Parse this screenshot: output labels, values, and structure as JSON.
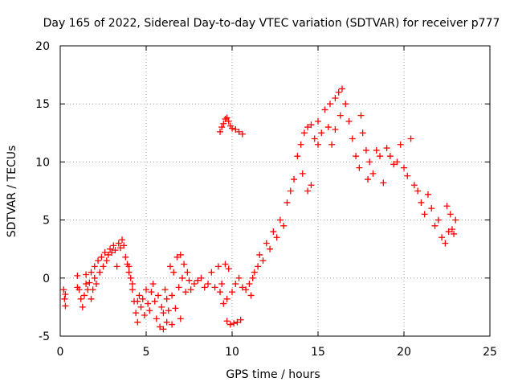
{
  "chart_data": {
    "type": "scatter",
    "title": "Day 165 of 2022, Sidereal Day-to-day VTEC variation (SDTVAR) for receiver p777",
    "xlabel": "GPS time / hours",
    "ylabel": "SDTVAR / TECUs",
    "xlim": [
      0,
      25
    ],
    "ylim": [
      -5,
      20
    ],
    "xticks": [
      "0",
      "5",
      "10",
      "15",
      "20",
      "25"
    ],
    "yticks": [
      "-5",
      "0",
      "5",
      "10",
      "15",
      "20"
    ],
    "grid": true,
    "marker": "plus",
    "series": [
      {
        "name": "SDTVAR",
        "color": "#ff0000",
        "points": [
          [
            0.2,
            -1.0
          ],
          [
            0.25,
            -1.8
          ],
          [
            0.3,
            -2.4
          ],
          [
            0.3,
            -1.4
          ],
          [
            1.0,
            -0.8
          ],
          [
            1.0,
            0.2
          ],
          [
            1.1,
            -1.0
          ],
          [
            1.2,
            -1.8
          ],
          [
            1.3,
            -2.5
          ],
          [
            1.4,
            -1.5
          ],
          [
            1.5,
            -0.5
          ],
          [
            1.5,
            0.3
          ],
          [
            1.6,
            -1.0
          ],
          [
            1.7,
            -0.4
          ],
          [
            1.8,
            -1.8
          ],
          [
            1.8,
            0.5
          ],
          [
            1.9,
            -1.0
          ],
          [
            2.0,
            0.0
          ],
          [
            2.0,
            1.0
          ],
          [
            2.1,
            -0.5
          ],
          [
            2.2,
            1.5
          ],
          [
            2.3,
            0.5
          ],
          [
            2.4,
            1.8
          ],
          [
            2.5,
            1.0
          ],
          [
            2.6,
            2.2
          ],
          [
            2.7,
            1.5
          ],
          [
            2.8,
            2.0
          ],
          [
            2.9,
            2.5
          ],
          [
            3.0,
            2.2
          ],
          [
            3.1,
            2.8
          ],
          [
            3.2,
            2.4
          ],
          [
            3.3,
            1.0
          ],
          [
            3.4,
            3.0
          ],
          [
            3.5,
            2.6
          ],
          [
            3.6,
            3.3
          ],
          [
            3.7,
            2.8
          ],
          [
            3.8,
            1.8
          ],
          [
            3.9,
            1.2
          ],
          [
            4.0,
            0.5
          ],
          [
            4.0,
            1.0
          ],
          [
            4.1,
            0.0
          ],
          [
            4.2,
            -1.0
          ],
          [
            4.2,
            -0.5
          ],
          [
            4.3,
            -2.0
          ],
          [
            4.4,
            -3.0
          ],
          [
            4.5,
            -3.8
          ],
          [
            4.5,
            -2.0
          ],
          [
            4.6,
            -1.5
          ],
          [
            4.7,
            -2.5
          ],
          [
            4.8,
            -1.8
          ],
          [
            4.9,
            -3.2
          ],
          [
            5.0,
            -1.0
          ],
          [
            5.1,
            -2.2
          ],
          [
            5.2,
            -2.8
          ],
          [
            5.3,
            -1.2
          ],
          [
            5.4,
            -0.5
          ],
          [
            5.5,
            -2.0
          ],
          [
            5.6,
            -3.5
          ],
          [
            5.7,
            -1.5
          ],
          [
            5.8,
            -4.2
          ],
          [
            5.9,
            -2.5
          ],
          [
            6.0,
            -4.4
          ],
          [
            6.0,
            -3.0
          ],
          [
            6.1,
            -1.0
          ],
          [
            6.2,
            -3.8
          ],
          [
            6.2,
            -1.8
          ],
          [
            6.3,
            -2.8
          ],
          [
            6.4,
            1.0
          ],
          [
            6.5,
            -1.5
          ],
          [
            6.5,
            -4.0
          ],
          [
            6.6,
            0.5
          ],
          [
            6.7,
            -2.6
          ],
          [
            6.8,
            1.8
          ],
          [
            6.9,
            -0.8
          ],
          [
            7.0,
            2.0
          ],
          [
            7.0,
            -3.5
          ],
          [
            7.1,
            0.0
          ],
          [
            7.2,
            1.2
          ],
          [
            7.3,
            -1.2
          ],
          [
            7.4,
            0.5
          ],
          [
            7.5,
            -0.2
          ],
          [
            7.6,
            -1.0
          ],
          [
            7.8,
            -0.5
          ],
          [
            8.0,
            -0.2
          ],
          [
            8.2,
            0.0
          ],
          [
            8.4,
            -0.8
          ],
          [
            8.6,
            -0.5
          ],
          [
            8.8,
            0.5
          ],
          [
            9.0,
            -0.8
          ],
          [
            9.2,
            1.0
          ],
          [
            9.3,
            -1.2
          ],
          [
            9.4,
            -0.5
          ],
          [
            9.5,
            -2.2
          ],
          [
            9.6,
            1.2
          ],
          [
            9.7,
            -1.8
          ],
          [
            9.8,
            0.8
          ],
          [
            10.0,
            -1.2
          ],
          [
            10.2,
            -0.5
          ],
          [
            10.4,
            0.0
          ],
          [
            10.6,
            -0.8
          ],
          [
            9.3,
            12.6
          ],
          [
            9.4,
            13.0
          ],
          [
            9.5,
            13.3
          ],
          [
            9.6,
            13.7
          ],
          [
            9.7,
            13.8
          ],
          [
            9.8,
            13.5
          ],
          [
            9.9,
            13.1
          ],
          [
            10.0,
            12.9
          ],
          [
            10.2,
            12.8
          ],
          [
            10.4,
            12.6
          ],
          [
            10.6,
            12.4
          ],
          [
            9.7,
            -3.7
          ],
          [
            9.9,
            -4.0
          ],
          [
            10.1,
            -3.9
          ],
          [
            10.3,
            -3.8
          ],
          [
            10.5,
            -3.6
          ],
          [
            10.8,
            -1.0
          ],
          [
            11.0,
            -0.5
          ],
          [
            11.1,
            -1.5
          ],
          [
            11.2,
            0.0
          ],
          [
            11.3,
            0.5
          ],
          [
            11.5,
            1.0
          ],
          [
            11.6,
            2.0
          ],
          [
            11.8,
            1.5
          ],
          [
            12.0,
            3.0
          ],
          [
            12.2,
            2.5
          ],
          [
            12.4,
            4.0
          ],
          [
            12.6,
            3.5
          ],
          [
            12.8,
            5.0
          ],
          [
            13.0,
            4.5
          ],
          [
            13.2,
            6.5
          ],
          [
            13.4,
            7.5
          ],
          [
            13.6,
            8.5
          ],
          [
            13.8,
            10.5
          ],
          [
            14.0,
            11.5
          ],
          [
            14.1,
            9.0
          ],
          [
            14.2,
            12.5
          ],
          [
            14.4,
            13.0
          ],
          [
            14.4,
            7.5
          ],
          [
            14.6,
            13.2
          ],
          [
            14.6,
            8.0
          ],
          [
            14.8,
            12.0
          ],
          [
            15.0,
            11.5
          ],
          [
            15.0,
            13.5
          ],
          [
            15.2,
            12.5
          ],
          [
            15.4,
            14.5
          ],
          [
            15.6,
            13.0
          ],
          [
            15.7,
            15.0
          ],
          [
            15.8,
            11.5
          ],
          [
            16.0,
            15.5
          ],
          [
            16.0,
            12.8
          ],
          [
            16.2,
            16.0
          ],
          [
            16.3,
            14.0
          ],
          [
            16.4,
            16.3
          ],
          [
            16.6,
            15.0
          ],
          [
            16.8,
            13.5
          ],
          [
            17.0,
            12.0
          ],
          [
            17.2,
            10.5
          ],
          [
            17.4,
            9.5
          ],
          [
            17.5,
            14.0
          ],
          [
            17.6,
            12.5
          ],
          [
            17.8,
            11.0
          ],
          [
            17.9,
            8.5
          ],
          [
            18.0,
            10.0
          ],
          [
            18.2,
            9.0
          ],
          [
            18.4,
            11.0
          ],
          [
            18.6,
            10.5
          ],
          [
            18.8,
            8.2
          ],
          [
            19.0,
            11.2
          ],
          [
            19.2,
            10.5
          ],
          [
            19.4,
            9.8
          ],
          [
            19.6,
            10.0
          ],
          [
            19.8,
            11.5
          ],
          [
            20.0,
            9.5
          ],
          [
            20.2,
            8.8
          ],
          [
            20.4,
            12.0
          ],
          [
            20.6,
            8.0
          ],
          [
            20.8,
            7.5
          ],
          [
            21.0,
            6.5
          ],
          [
            21.2,
            5.5
          ],
          [
            21.4,
            7.2
          ],
          [
            21.6,
            6.0
          ],
          [
            21.8,
            4.5
          ],
          [
            22.0,
            5.0
          ],
          [
            22.2,
            3.5
          ],
          [
            22.4,
            3.0
          ],
          [
            22.5,
            6.2
          ],
          [
            22.6,
            4.0
          ],
          [
            22.7,
            5.5
          ],
          [
            22.8,
            4.2
          ],
          [
            22.9,
            3.8
          ],
          [
            23.0,
            5.0
          ]
        ]
      }
    ]
  }
}
